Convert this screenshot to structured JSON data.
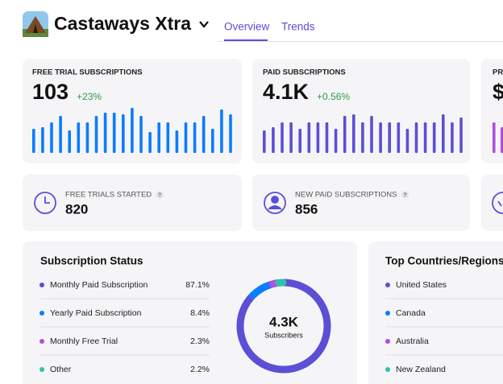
{
  "header": {
    "app_name": "Castaways Xtra",
    "tabs": [
      "Overview",
      "Trends"
    ],
    "active_tab": 0
  },
  "metric_cards": [
    {
      "label": "FREE TRIAL SUBSCRIPTIONS",
      "value": 103,
      "change": "+23%",
      "color": "#0a7cff",
      "bars": [
        30,
        32,
        38,
        46,
        28,
        38,
        38,
        46,
        50,
        50,
        48,
        56,
        46,
        26,
        38,
        38,
        28,
        38,
        38,
        46,
        30,
        54,
        48
      ]
    },
    {
      "label": "PAID SUBSCRIPTIONS",
      "value": "4.1K",
      "change": "+0.56%",
      "color": "#5b4fd6",
      "bars": [
        28,
        32,
        38,
        38,
        30,
        38,
        38,
        38,
        30,
        46,
        48,
        38,
        46,
        38,
        38,
        38,
        30,
        38,
        38,
        38,
        48,
        38,
        44
      ]
    },
    {
      "label": "PR",
      "value": "$",
      "color": "#b14ee0",
      "bars": [
        38,
        32
      ]
    }
  ],
  "count_cards": [
    {
      "label": "FREE TRIALS STARTED",
      "help": "?",
      "value": 820
    },
    {
      "label": "NEW PAID SUBSCRIPTIONS",
      "help": "?",
      "value": 856
    }
  ],
  "subscription_status": {
    "title": "Subscription Status",
    "center_value": "4.3K",
    "center_label": "Subscribers",
    "series": [
      {
        "name": "Monthly Paid Subscription",
        "value": 87.1,
        "value_label": "87.1%",
        "color": "#5b4fd6"
      },
      {
        "name": "Yearly Paid Subscription",
        "value": 8.4,
        "value_label": "8.4%",
        "color": "#0a7cff"
      },
      {
        "name": "Monthly Free Trial",
        "value": 2.3,
        "value_label": "2.3%",
        "color": "#b14ee0"
      },
      {
        "name": "Other",
        "value": 2.2,
        "value_label": "2.2%",
        "color": "#2cc3a8"
      }
    ]
  },
  "top_countries": {
    "title": "Top Countries/Regions",
    "rows": [
      {
        "name": "United States",
        "color": "#5b4fd6"
      },
      {
        "name": "Canada",
        "color": "#0a7cff"
      },
      {
        "name": "Australia",
        "color": "#b14ee0"
      },
      {
        "name": "New Zealand",
        "color": "#2cc3a8"
      }
    ]
  }
}
